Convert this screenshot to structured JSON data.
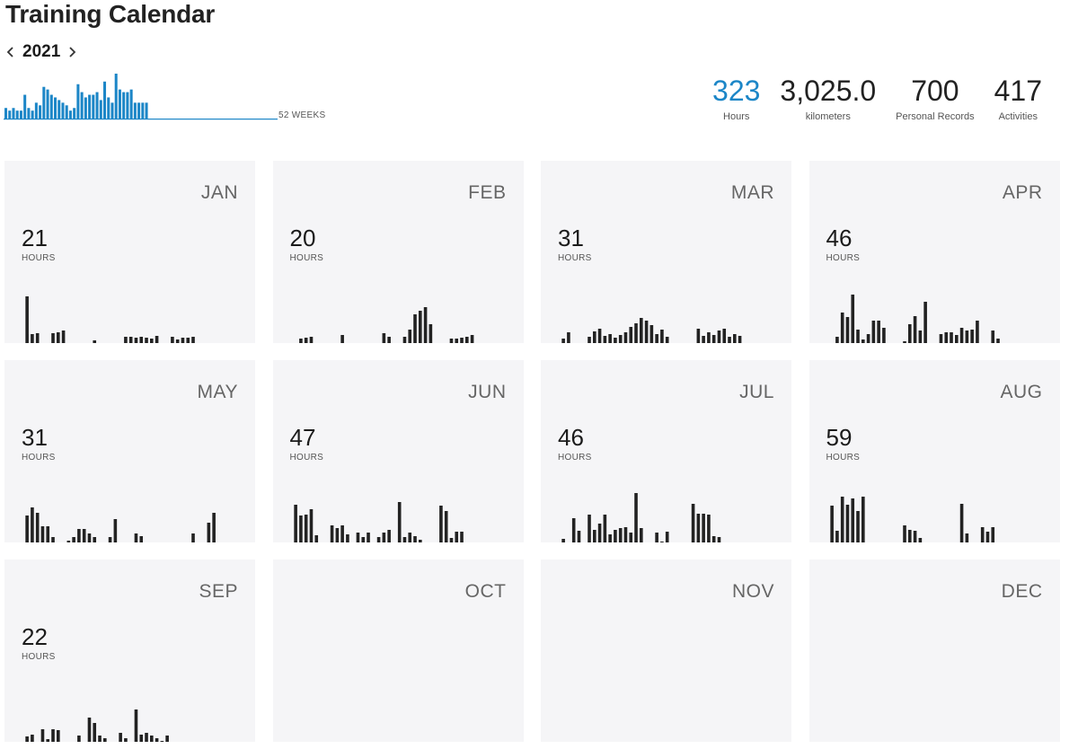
{
  "page": {
    "title": "Training Calendar"
  },
  "year_nav": {
    "year": "2021",
    "prev_icon": "chevron-left-icon",
    "next_icon": "chevron-right-icon"
  },
  "weekly": {
    "label": "52 WEEKS",
    "color": "#1c86c7",
    "weeks": [
      4,
      3,
      4,
      3,
      3,
      9,
      4,
      3,
      6,
      5,
      12,
      11,
      9,
      8,
      7,
      6,
      5,
      3,
      4,
      13,
      10,
      8,
      9,
      9,
      10,
      7,
      14,
      8,
      6,
      17,
      11,
      10,
      10,
      11,
      6,
      6,
      6,
      6,
      0,
      0,
      0,
      0,
      0,
      0,
      0,
      0,
      0,
      0,
      0,
      0,
      0,
      0
    ]
  },
  "stats": [
    {
      "value": "323",
      "label": "Hours",
      "accent": true
    },
    {
      "value": "3,025.0",
      "label": "kilometers",
      "accent": false
    },
    {
      "value": "700",
      "label": "Personal Records",
      "accent": false
    },
    {
      "value": "417",
      "label": "Activities",
      "accent": false
    }
  ],
  "hours_label": "HOURS",
  "bar_color": "#222222",
  "months": [
    {
      "name": "JAN",
      "hours": "21",
      "bars": [
        0,
        0,
        0,
        52,
        10,
        11,
        0,
        0,
        11,
        12,
        14,
        0,
        0,
        0,
        0,
        0,
        3,
        0,
        0,
        0,
        0,
        0,
        7,
        7,
        6,
        7,
        6,
        5,
        8,
        0,
        0,
        7,
        4,
        6,
        6,
        7,
        0,
        0,
        0,
        0,
        0,
        0,
        0,
        0,
        0
      ],
      "selected": false
    },
    {
      "name": "FEB",
      "hours": "20",
      "bars": [
        0,
        0,
        0,
        0,
        5,
        6,
        7,
        0,
        0,
        0,
        0,
        0,
        9,
        0,
        0,
        0,
        0,
        0,
        0,
        0,
        11,
        7,
        0,
        0,
        7,
        15,
        32,
        36,
        40,
        21,
        0,
        0,
        0,
        5,
        5,
        6,
        7,
        9,
        0,
        0,
        0,
        0,
        0,
        0,
        0
      ],
      "selected": false
    },
    {
      "name": "MAR",
      "hours": "31",
      "bars": [
        0,
        0,
        0,
        5,
        12,
        0,
        0,
        0,
        7,
        13,
        16,
        8,
        10,
        6,
        9,
        12,
        18,
        22,
        28,
        25,
        20,
        10,
        15,
        7,
        0,
        0,
        0,
        0,
        0,
        16,
        8,
        12,
        9,
        14,
        16,
        7,
        10,
        8,
        0,
        0,
        0,
        0,
        0,
        0,
        0
      ],
      "selected": false
    },
    {
      "name": "APR",
      "hours": "46",
      "bars": [
        0,
        0,
        0,
        0,
        7,
        34,
        29,
        54,
        15,
        4,
        10,
        25,
        25,
        17,
        0,
        0,
        0,
        2,
        21,
        30,
        14,
        46,
        0,
        0,
        10,
        12,
        12,
        9,
        17,
        14,
        15,
        25,
        0,
        0,
        14,
        5,
        0,
        0,
        0,
        0,
        0,
        0,
        0,
        0,
        0
      ],
      "selected": false
    },
    {
      "name": "MAY",
      "hours": "31",
      "bars": [
        0,
        0,
        0,
        30,
        39,
        33,
        18,
        18,
        6,
        0,
        0,
        2,
        6,
        15,
        15,
        10,
        6,
        0,
        0,
        6,
        26,
        0,
        0,
        0,
        10,
        7,
        0,
        0,
        0,
        0,
        0,
        0,
        0,
        0,
        0,
        10,
        0,
        0,
        22,
        33,
        0,
        0,
        0,
        0,
        0
      ],
      "selected": false
    },
    {
      "name": "JUN",
      "hours": "47",
      "bars": [
        0,
        0,
        0,
        42,
        30,
        31,
        37,
        8,
        0,
        0,
        19,
        16,
        19,
        9,
        0,
        11,
        6,
        11,
        0,
        6,
        11,
        14,
        0,
        45,
        6,
        11,
        7,
        3,
        0,
        0,
        0,
        41,
        35,
        5,
        12,
        12,
        0,
        0,
        0,
        0,
        0,
        0,
        0,
        0,
        0
      ],
      "selected": false
    },
    {
      "name": "JUL",
      "hours": "46",
      "bars": [
        0,
        0,
        0,
        4,
        0,
        27,
        13,
        0,
        31,
        14,
        21,
        31,
        9,
        14,
        16,
        17,
        11,
        55,
        16,
        0,
        0,
        11,
        1,
        12,
        0,
        0,
        0,
        0,
        43,
        32,
        32,
        31,
        7,
        6,
        0,
        0,
        0,
        0,
        0,
        0,
        0,
        0,
        0,
        0,
        0
      ],
      "selected": false
    },
    {
      "name": "AUG",
      "hours": "59",
      "bars": [
        0,
        0,
        0,
        41,
        13,
        51,
        42,
        49,
        35,
        51,
        0,
        0,
        0,
        0,
        0,
        0,
        0,
        19,
        14,
        13,
        5,
        0,
        0,
        0,
        0,
        0,
        0,
        0,
        43,
        10,
        0,
        0,
        17,
        12,
        17,
        0,
        0,
        0,
        0,
        0,
        0,
        0,
        0,
        0,
        0
      ],
      "selected": false
    },
    {
      "name": "SEP",
      "hours": "22",
      "bars": [
        0,
        0,
        0,
        6,
        8,
        0,
        14,
        3,
        14,
        13,
        0,
        0,
        0,
        7,
        0,
        27,
        21,
        7,
        4,
        0,
        0,
        10,
        4,
        0,
        36,
        8,
        10,
        7,
        4,
        1,
        7,
        0,
        0,
        0,
        0,
        0,
        0,
        0,
        0,
        0,
        0,
        0,
        0,
        0,
        0
      ],
      "selected": false
    },
    {
      "name": "OCT",
      "hours": "",
      "bars": [],
      "selected": false
    },
    {
      "name": "NOV",
      "hours": "",
      "bars": [],
      "selected": false
    },
    {
      "name": "DEC",
      "hours": "",
      "bars": [],
      "selected": false
    }
  ]
}
